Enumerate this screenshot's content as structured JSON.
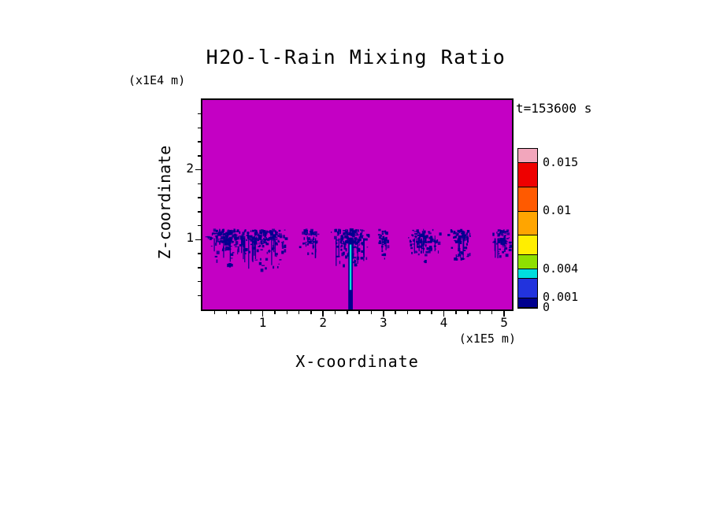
{
  "title": "H2O-l-Rain Mixing Ratio",
  "annotations": {
    "time": "t=153600 s",
    "z_units": "(x1E4 m)",
    "x_units": "(x1E5 m)"
  },
  "axes": {
    "x": {
      "label": "X-coordinate",
      "range": [
        0,
        5.13
      ],
      "ticks": [
        1,
        2,
        3,
        4,
        5
      ],
      "minor_step": 0.2
    },
    "z": {
      "label": "Z-coordinate",
      "range": [
        0,
        3.0
      ],
      "ticks": [
        1,
        2
      ],
      "minor_step": 0.2
    }
  },
  "colors": {
    "background": "#C400C4",
    "rain": "#00008E",
    "core": "#00E0D8",
    "frame": "#000000"
  },
  "colorbar": {
    "max": 0.0165,
    "segments": [
      {
        "from": 0,
        "to": 0.001,
        "color": "#00008E"
      },
      {
        "from": 0.001,
        "to": 0.003,
        "color": "#2233DD"
      },
      {
        "from": 0.003,
        "to": 0.004,
        "color": "#00DEDE"
      },
      {
        "from": 0.004,
        "to": 0.0055,
        "color": "#8FE000"
      },
      {
        "from": 0.0055,
        "to": 0.0075,
        "color": "#FFEE00"
      },
      {
        "from": 0.0075,
        "to": 0.01,
        "color": "#FFA500"
      },
      {
        "from": 0.01,
        "to": 0.0125,
        "color": "#FF5A00"
      },
      {
        "from": 0.0125,
        "to": 0.015,
        "color": "#EE0000"
      },
      {
        "from": 0.015,
        "to": 0.0165,
        "color": "#F2A6BC"
      }
    ],
    "labels": [
      {
        "value": 0.015,
        "text": "0.015"
      },
      {
        "value": 0.01,
        "text": "0.01"
      },
      {
        "value": 0.004,
        "text": "0.004"
      },
      {
        "value": 0.001,
        "text": "0.001"
      },
      {
        "value": 0,
        "text": "0"
      }
    ]
  },
  "chart_data": {
    "type": "heatmap",
    "field": "H2O-l-Rain Mixing Ratio",
    "time_label": "t=153600 s",
    "time_seconds": 153600,
    "x_axis": {
      "label": "X-coordinate",
      "units": "x1E5 m",
      "range": [
        0,
        5.13
      ],
      "ticks": [
        1,
        2,
        3,
        4,
        5
      ]
    },
    "z_axis": {
      "label": "Z-coordinate",
      "units": "x1E4 m",
      "range": [
        0,
        3.0
      ],
      "ticks": [
        1,
        2
      ]
    },
    "value_levels": [
      0,
      0.001,
      0.004,
      0.01,
      0.015
    ],
    "background_value": 0,
    "rain_band": {
      "z_center": 1.0,
      "z_top": 1.15,
      "typical_value": 0.002
    },
    "clusters": [
      {
        "cx": 0.42,
        "spread": 0.38,
        "depth": 0.38,
        "n": 170
      },
      {
        "cx": 1.05,
        "spread": 0.38,
        "depth": 0.5,
        "n": 170
      },
      {
        "cx": 1.78,
        "spread": 0.17,
        "depth": 0.28,
        "n": 55
      },
      {
        "cx": 2.46,
        "spread": 0.34,
        "depth": 0.42,
        "n": 180
      },
      {
        "cx": 3.02,
        "spread": 0.12,
        "depth": 0.25,
        "n": 40
      },
      {
        "cx": 3.68,
        "spread": 0.28,
        "depth": 0.3,
        "n": 110
      },
      {
        "cx": 4.27,
        "spread": 0.2,
        "depth": 0.35,
        "n": 85
      },
      {
        "cx": 4.97,
        "spread": 0.17,
        "depth": 0.3,
        "n": 70
      }
    ],
    "streak": {
      "x": 2.455,
      "width": 0.075,
      "z_top": 1.03,
      "z_bottom": 0.0,
      "core": {
        "z_top": 0.93,
        "z_bottom": 0.28,
        "value": 0.004
      }
    }
  }
}
